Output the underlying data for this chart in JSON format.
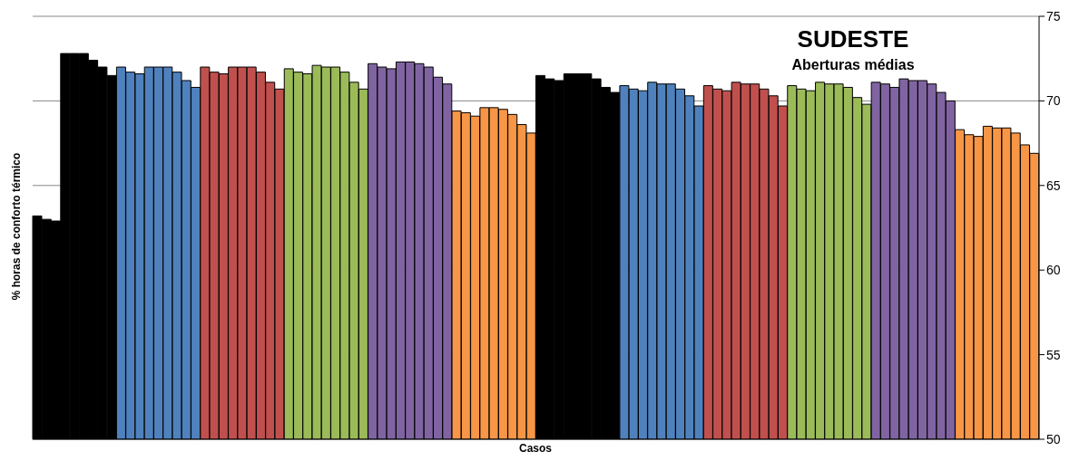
{
  "chart_data": {
    "type": "bar",
    "title": "SUDESTE",
    "subtitle": "Aberturas médias",
    "xlabel": "Casos",
    "ylabel": "% horas de conforto térmico",
    "categories": [
      null,
      null,
      null,
      null,
      null,
      null,
      null,
      null,
      null,
      null,
      null,
      null,
      null,
      null,
      null,
      null,
      null,
      null,
      null,
      null,
      null,
      null,
      null,
      null,
      null,
      null,
      null,
      null,
      null,
      null,
      null,
      null,
      null,
      null,
      null,
      null,
      null,
      null,
      null,
      null,
      null,
      null,
      null,
      null,
      null,
      null,
      null,
      null,
      null,
      null,
      null,
      null,
      null,
      null,
      null,
      null,
      null,
      null,
      null,
      null,
      null,
      null,
      null,
      null,
      null,
      null,
      null,
      null,
      null,
      null,
      null,
      null,
      null,
      null,
      null,
      null,
      null,
      null,
      null,
      null,
      null,
      null,
      null,
      null,
      null,
      null,
      null,
      null,
      null,
      null,
      null,
      null,
      null,
      null,
      null,
      null,
      null,
      null,
      null,
      null,
      null,
      null,
      null,
      null,
      null,
      null,
      null,
      null
    ],
    "values": [
      63.2,
      63.0,
      62.9,
      72.8,
      72.8,
      72.8,
      72.4,
      72.0,
      71.5,
      72.0,
      71.7,
      71.6,
      72.0,
      72.0,
      72.0,
      71.7,
      71.2,
      70.8,
      72.0,
      71.7,
      71.6,
      72.0,
      72.0,
      72.0,
      71.7,
      71.1,
      70.7,
      71.9,
      71.7,
      71.6,
      72.1,
      72.0,
      72.0,
      71.7,
      71.1,
      70.7,
      72.2,
      72.0,
      71.9,
      72.3,
      72.3,
      72.2,
      72.0,
      71.4,
      71.0,
      69.4,
      69.3,
      69.1,
      69.6,
      69.6,
      69.5,
      69.2,
      68.6,
      68.1,
      71.5,
      71.3,
      71.2,
      71.6,
      71.6,
      71.6,
      71.3,
      70.8,
      70.5,
      70.9,
      70.7,
      70.6,
      71.1,
      71.0,
      71.0,
      70.7,
      70.3,
      69.7,
      70.9,
      70.7,
      70.6,
      71.1,
      71.0,
      71.0,
      70.7,
      70.3,
      69.7,
      70.9,
      70.7,
      70.6,
      71.1,
      71.0,
      71.0,
      70.8,
      70.2,
      69.8,
      71.1,
      71.0,
      70.8,
      71.3,
      71.2,
      71.2,
      71.0,
      70.5,
      70.0,
      68.3,
      68.0,
      67.9,
      68.5,
      68.4,
      68.4,
      68.1,
      67.4,
      66.9
    ],
    "colors": [
      "#000000",
      "#000000",
      "#000000",
      "#000000",
      "#000000",
      "#000000",
      "#000000",
      "#000000",
      "#000000",
      "#4f81bd",
      "#4f81bd",
      "#4f81bd",
      "#4f81bd",
      "#4f81bd",
      "#4f81bd",
      "#4f81bd",
      "#4f81bd",
      "#4f81bd",
      "#c0504d",
      "#c0504d",
      "#c0504d",
      "#c0504d",
      "#c0504d",
      "#c0504d",
      "#c0504d",
      "#c0504d",
      "#c0504d",
      "#9bbb59",
      "#9bbb59",
      "#9bbb59",
      "#9bbb59",
      "#9bbb59",
      "#9bbb59",
      "#9bbb59",
      "#9bbb59",
      "#9bbb59",
      "#8064a2",
      "#8064a2",
      "#8064a2",
      "#8064a2",
      "#8064a2",
      "#8064a2",
      "#8064a2",
      "#8064a2",
      "#8064a2",
      "#f79646",
      "#f79646",
      "#f79646",
      "#f79646",
      "#f79646",
      "#f79646",
      "#f79646",
      "#f79646",
      "#f79646",
      "#000000",
      "#000000",
      "#000000",
      "#000000",
      "#000000",
      "#000000",
      "#000000",
      "#000000",
      "#000000",
      "#4f81bd",
      "#4f81bd",
      "#4f81bd",
      "#4f81bd",
      "#4f81bd",
      "#4f81bd",
      "#4f81bd",
      "#4f81bd",
      "#4f81bd",
      "#c0504d",
      "#c0504d",
      "#c0504d",
      "#c0504d",
      "#c0504d",
      "#c0504d",
      "#c0504d",
      "#c0504d",
      "#c0504d",
      "#9bbb59",
      "#9bbb59",
      "#9bbb59",
      "#9bbb59",
      "#9bbb59",
      "#9bbb59",
      "#9bbb59",
      "#9bbb59",
      "#9bbb59",
      "#8064a2",
      "#8064a2",
      "#8064a2",
      "#8064a2",
      "#8064a2",
      "#8064a2",
      "#8064a2",
      "#8064a2",
      "#8064a2",
      "#f79646",
      "#f79646",
      "#f79646",
      "#f79646",
      "#f79646",
      "#f79646",
      "#f79646",
      "#f79646",
      "#f79646"
    ],
    "ylim": [
      50,
      75
    ],
    "yticks": [
      50,
      55,
      60,
      65,
      70,
      75
    ],
    "grid": "y",
    "legend": false
  }
}
